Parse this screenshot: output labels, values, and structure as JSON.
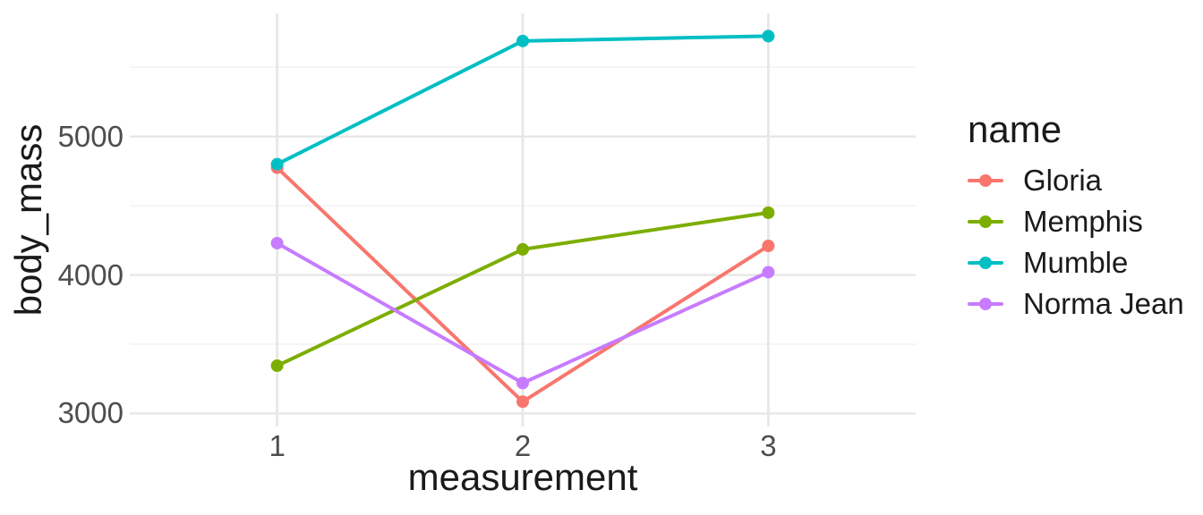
{
  "chart_data": {
    "type": "line",
    "title": "",
    "xlabel": "measurement",
    "ylabel": "body_mass",
    "legend_title": "name",
    "legend_position": "right",
    "x": [
      1,
      2,
      3
    ],
    "series": [
      {
        "name": "Gloria",
        "color": "#F8766D",
        "values": [
          4775,
          3085,
          4210
        ]
      },
      {
        "name": "Memphis",
        "color": "#7CAE00",
        "values": [
          3345,
          4185,
          4450
        ]
      },
      {
        "name": "Mumble",
        "color": "#00BFC4",
        "values": [
          4800,
          5690,
          5725
        ]
      },
      {
        "name": "Norma Jean",
        "color": "#C77CFF",
        "values": [
          4230,
          3220,
          4020
        ]
      }
    ],
    "x_tick_labels": [
      "1",
      "2",
      "3"
    ],
    "x_tick_values": [
      1,
      2,
      3
    ],
    "y_tick_labels": [
      "3000",
      "4000",
      "5000"
    ],
    "y_tick_values": [
      3000,
      4000,
      5000
    ],
    "y_minor_values": [
      3500,
      4500,
      5500
    ],
    "xlim": [
      0.4,
      3.6
    ],
    "ylim": [
      2906,
      5889
    ],
    "grid": "major+minor, no axis lines, no ticks",
    "colors": {
      "background": "#FFFFFF",
      "grid_major": "#E7E7E7",
      "grid_minor": "#F2F2F2",
      "tick_text": "#4D4D4D",
      "title_text": "#1A1A1A"
    }
  }
}
